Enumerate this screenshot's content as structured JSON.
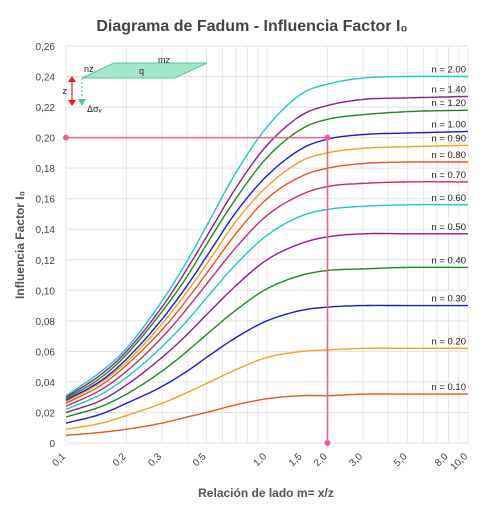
{
  "chart_data": {
    "type": "line",
    "title": "Diagrama de Fadum - Influencia Factor I₀",
    "xlabel": "Relación de lado m= x/z",
    "ylabel": "Influencia Factor I₀",
    "x_scale": "log",
    "xlim": [
      0.1,
      10.0
    ],
    "ylim": [
      0,
      0.26
    ],
    "grid": true,
    "x_ticks": [
      0.1,
      0.2,
      0.3,
      0.5,
      1.0,
      1.5,
      2.0,
      3.0,
      5.0,
      8.0,
      10.0
    ],
    "x_tick_labels": [
      "0,1",
      "0,2",
      "0,3",
      "0,5",
      "1,0",
      "1,5",
      "2,0",
      "3,0",
      "5,0",
      "8,0",
      "10,0"
    ],
    "y_ticks": [
      0,
      0.02,
      0.04,
      0.06,
      0.08,
      0.1,
      0.12,
      0.14,
      0.16,
      0.18,
      0.2,
      0.22,
      0.24,
      0.26
    ],
    "y_tick_labels": [
      "0",
      "0,02",
      "0,04",
      "0,06",
      "0,08",
      "0,10",
      "0,12",
      "0,14",
      "0,16",
      "0,18",
      "0,20",
      "0,22",
      "0,24",
      "0,26"
    ],
    "x": [
      0.1,
      0.15,
      0.2,
      0.3,
      0.4,
      0.5,
      0.7,
      1.0,
      1.5,
      2.0,
      3.0,
      5.0,
      10.0
    ],
    "series": [
      {
        "name": "n = 0.10",
        "color": "#e8571e",
        "values": [
          0.005,
          0.007,
          0.009,
          0.013,
          0.017,
          0.02,
          0.025,
          0.029,
          0.031,
          0.031,
          0.032,
          0.032,
          0.032
        ]
      },
      {
        "name": "n = 0.20",
        "color": "#f4a21c",
        "values": [
          0.009,
          0.013,
          0.018,
          0.026,
          0.033,
          0.039,
          0.048,
          0.056,
          0.06,
          0.061,
          0.062,
          0.062,
          0.062
        ]
      },
      {
        "name": "n = 0.30",
        "color": "#1a1adc",
        "values": [
          0.013,
          0.019,
          0.026,
          0.037,
          0.047,
          0.056,
          0.069,
          0.08,
          0.087,
          0.089,
          0.09,
          0.09,
          0.09
        ]
      },
      {
        "name": "n = 0.40",
        "color": "#1e8a1e",
        "values": [
          0.017,
          0.024,
          0.032,
          0.047,
          0.06,
          0.071,
          0.087,
          0.101,
          0.11,
          0.113,
          0.114,
          0.115,
          0.115
        ]
      },
      {
        "name": "n = 0.50",
        "color": "#8b1f8b",
        "values": [
          0.02,
          0.028,
          0.038,
          0.056,
          0.071,
          0.084,
          0.103,
          0.12,
          0.131,
          0.135,
          0.137,
          0.137,
          0.137
        ]
      },
      {
        "name": "n = 0.60",
        "color": "#1ec8c8",
        "values": [
          0.022,
          0.032,
          0.043,
          0.063,
          0.08,
          0.095,
          0.117,
          0.136,
          0.149,
          0.153,
          0.155,
          0.156,
          0.156
        ]
      },
      {
        "name": "n = 0.70",
        "color": "#c6287a",
        "values": [
          0.024,
          0.035,
          0.047,
          0.069,
          0.088,
          0.104,
          0.128,
          0.149,
          0.163,
          0.168,
          0.17,
          0.171,
          0.171
        ]
      },
      {
        "name": "n = 0.80",
        "color": "#e8571e",
        "values": [
          0.026,
          0.038,
          0.051,
          0.074,
          0.094,
          0.111,
          0.137,
          0.16,
          0.175,
          0.18,
          0.183,
          0.184,
          0.184
        ]
      },
      {
        "name": "n = 0.90",
        "color": "#f4a21c",
        "values": [
          0.027,
          0.04,
          0.053,
          0.078,
          0.099,
          0.117,
          0.145,
          0.168,
          0.185,
          0.19,
          0.193,
          0.194,
          0.195
        ]
      },
      {
        "name": "n = 1.00",
        "color": "#1a1adc",
        "values": [
          0.028,
          0.041,
          0.055,
          0.081,
          0.103,
          0.122,
          0.151,
          0.175,
          0.193,
          0.199,
          0.202,
          0.203,
          0.204
        ]
      },
      {
        "name": "n = 1.20",
        "color": "#1e8a1e",
        "values": [
          0.029,
          0.043,
          0.058,
          0.086,
          0.109,
          0.13,
          0.16,
          0.187,
          0.206,
          0.212,
          0.215,
          0.217,
          0.218
        ]
      },
      {
        "name": "n = 1.40",
        "color": "#8b1f8b",
        "values": [
          0.03,
          0.045,
          0.06,
          0.089,
          0.114,
          0.135,
          0.167,
          0.195,
          0.215,
          0.221,
          0.225,
          0.226,
          0.227
        ]
      },
      {
        "name": "n = 2.00",
        "color": "#1ec8c8",
        "values": [
          0.031,
          0.047,
          0.062,
          0.093,
          0.119,
          0.142,
          0.177,
          0.207,
          0.229,
          0.235,
          0.239,
          0.24,
          0.24
        ]
      }
    ],
    "reference_lines": {
      "color": "#f0608a",
      "horizontal_y": 0.2,
      "vertical_x": 2.0
    }
  },
  "inset": {
    "nz": "nz",
    "mz": "mz",
    "q": "q",
    "z": "z",
    "delta_sigma": "Δσᵥ"
  }
}
